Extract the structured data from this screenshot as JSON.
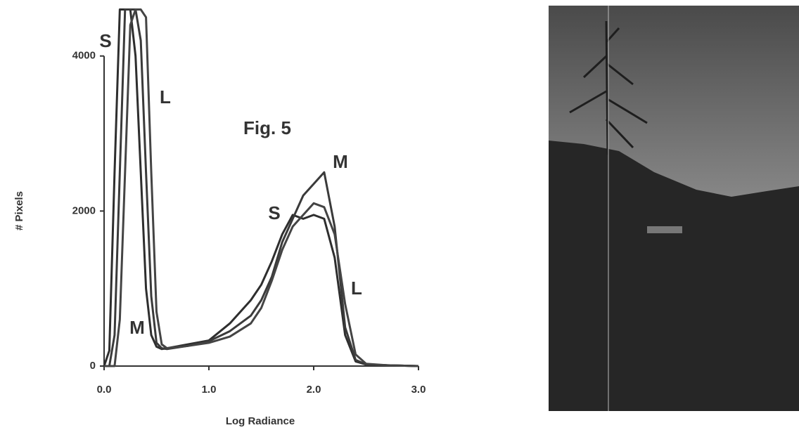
{
  "chart_data": {
    "type": "line",
    "annotation": "Fig. 5",
    "xlabel": "Log Radiance",
    "ylabel": "# Pixels",
    "x": [
      0,
      0.05,
      0.1,
      0.15,
      0.2,
      0.25,
      0.3,
      0.35,
      0.4,
      0.45,
      0.5,
      0.55,
      0.6,
      0.8,
      1.0,
      1.2,
      1.4,
      1.5,
      1.6,
      1.7,
      1.8,
      1.9,
      2.0,
      2.1,
      2.2,
      2.3,
      2.4,
      2.5,
      2.7,
      3.0
    ],
    "series": [
      {
        "name": "S",
        "color": "#2e2e2e",
        "values": [
          0,
          200,
          2500,
          4600,
          4600,
          4600,
          4000,
          2500,
          1000,
          400,
          250,
          220,
          230,
          280,
          330,
          550,
          850,
          1050,
          1350,
          1700,
          1950,
          1900,
          1950,
          1900,
          1400,
          400,
          60,
          20,
          10,
          0
        ]
      },
      {
        "name": "M",
        "color": "#3a3a3a",
        "values": [
          0,
          0,
          400,
          2500,
          4600,
          4600,
          4600,
          4200,
          2500,
          900,
          300,
          230,
          220,
          260,
          320,
          450,
          650,
          850,
          1150,
          1600,
          1900,
          2200,
          2350,
          2500,
          1800,
          500,
          80,
          20,
          10,
          0
        ]
      },
      {
        "name": "L",
        "color": "#444444",
        "values": [
          0,
          0,
          0,
          600,
          2500,
          4400,
          4600,
          4600,
          4500,
          2500,
          700,
          280,
          230,
          260,
          300,
          380,
          550,
          750,
          1100,
          1500,
          1800,
          1950,
          2100,
          2050,
          1700,
          800,
          150,
          30,
          10,
          0
        ]
      }
    ],
    "xlim": [
      0,
      3
    ],
    "ylim": [
      0,
      4650
    ],
    "xticks": [
      {
        "value": 0,
        "label": "0.0"
      },
      {
        "value": 1,
        "label": "1.0"
      },
      {
        "value": 2,
        "label": "2.0"
      },
      {
        "value": 3,
        "label": "3.0"
      }
    ],
    "yticks": [
      0,
      2000,
      4000
    ],
    "grid": false
  }
}
